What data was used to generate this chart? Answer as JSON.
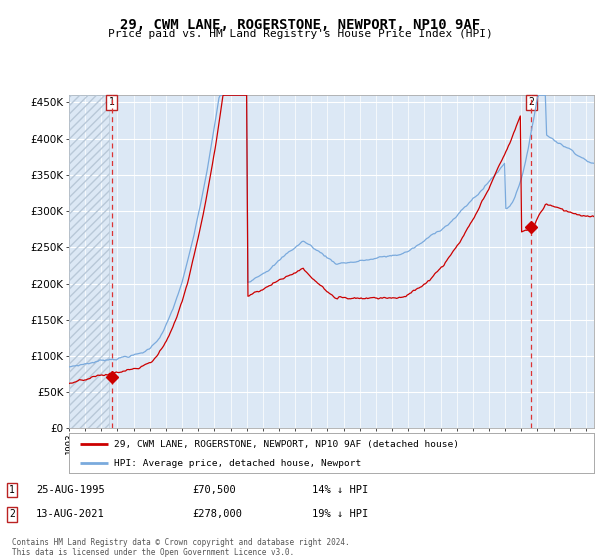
{
  "title": "29, CWM LANE, ROGERSTONE, NEWPORT, NP10 9AF",
  "subtitle": "Price paid vs. HM Land Registry's House Price Index (HPI)",
  "legend_line1": "29, CWM LANE, ROGERSTONE, NEWPORT, NP10 9AF (detached house)",
  "legend_line2": "HPI: Average price, detached house, Newport",
  "annotation1_date": "25-AUG-1995",
  "annotation1_price": "£70,500",
  "annotation1_hpi": "14% ↓ HPI",
  "annotation2_date": "13-AUG-2021",
  "annotation2_price": "£278,000",
  "annotation2_hpi": "19% ↓ HPI",
  "footnote": "Contains HM Land Registry data © Crown copyright and database right 2024.\nThis data is licensed under the Open Government Licence v3.0.",
  "hpi_color": "#7aaadd",
  "price_color": "#cc0000",
  "marker_color": "#cc0000",
  "plot_bg": "#dce8f5",
  "fig_bg": "#ffffff",
  "grid_color": "#ffffff",
  "hatch_color": "#b8c8d8",
  "dashed_line_color": "#dd3333",
  "ylim": [
    0,
    460000
  ],
  "yticks": [
    0,
    50000,
    100000,
    150000,
    200000,
    250000,
    300000,
    350000,
    400000,
    450000
  ],
  "sale1_year": 1995.646,
  "sale1_value": 70500,
  "sale2_year": 2021.617,
  "sale2_value": 278000,
  "xmin": 1993.0,
  "xmax": 2025.5,
  "hatch_end_year": 1995.5
}
